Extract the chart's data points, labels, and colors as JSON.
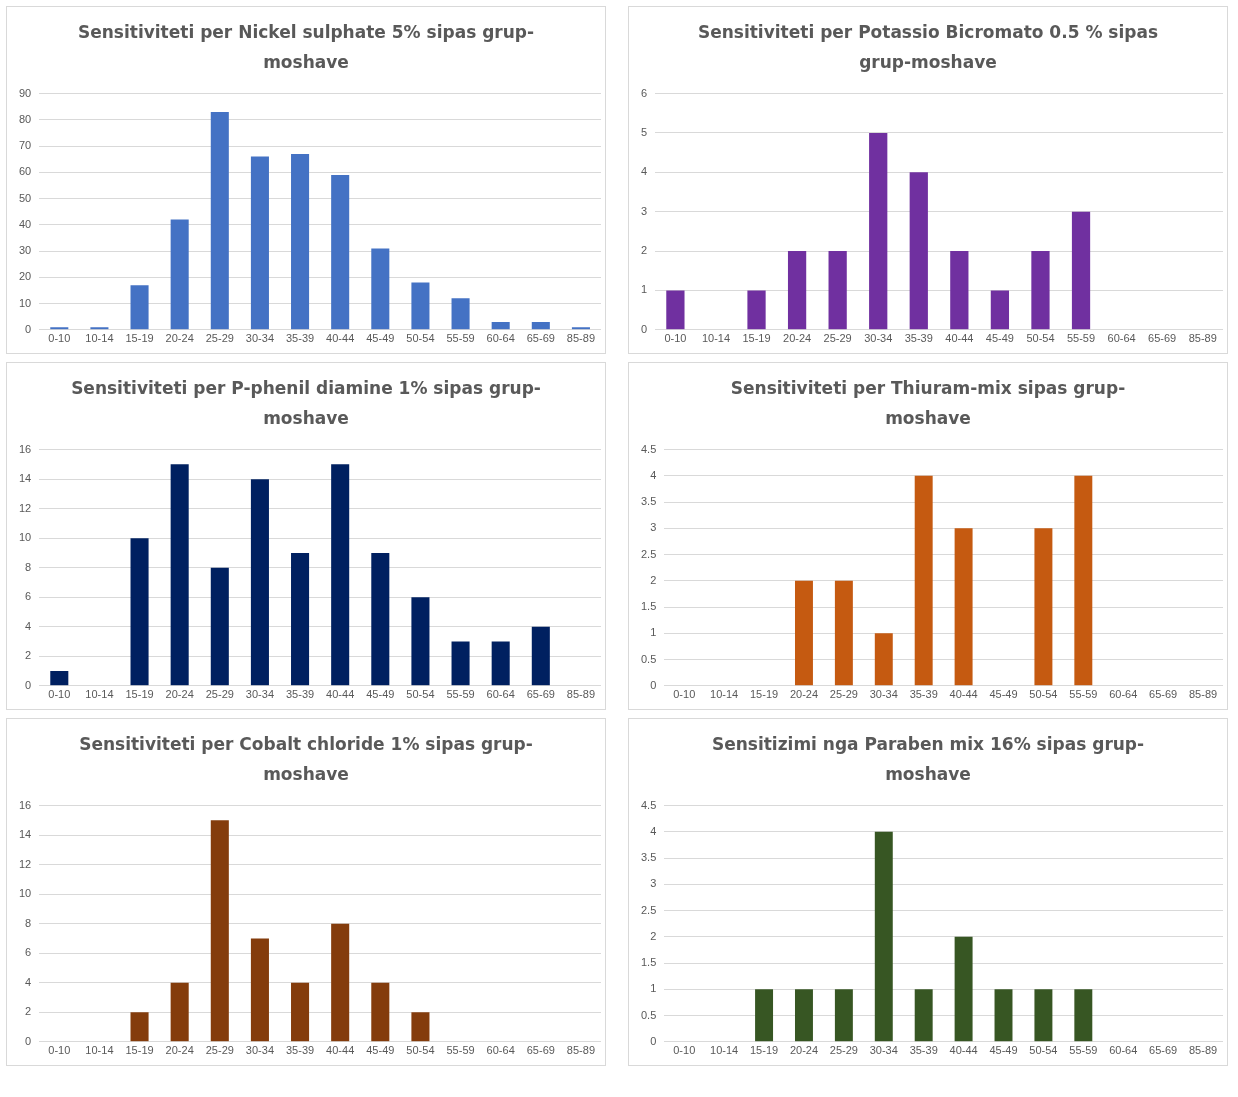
{
  "chart_data": [
    {
      "type": "bar",
      "title": "Sensitiviteti per Nickel sulphate 5% sipas grup-moshave",
      "categories": [
        "0-10",
        "10-14",
        "15-19",
        "20-24",
        "25-29",
        "30-34",
        "35-39",
        "40-44",
        "45-49",
        "50-54",
        "55-59",
        "60-64",
        "65-69",
        "85-89"
      ],
      "values": [
        1,
        1,
        17,
        42,
        83,
        66,
        67,
        59,
        31,
        18,
        12,
        3,
        3,
        1
      ],
      "color": "#4472c4",
      "ylim": [
        0,
        90
      ],
      "yticks": [
        0,
        10,
        20,
        30,
        40,
        50,
        60,
        70,
        80,
        90
      ],
      "grid": "y"
    },
    {
      "type": "bar",
      "title": "Sensitiviteti per Potassio Bicromato 0.5 % sipas grup-moshave",
      "categories": [
        "0-10",
        "10-14",
        "15-19",
        "20-24",
        "25-29",
        "30-34",
        "35-39",
        "40-44",
        "45-49",
        "50-54",
        "55-59",
        "60-64",
        "65-69",
        "85-89"
      ],
      "values": [
        1,
        0,
        1,
        2,
        2,
        5,
        4,
        2,
        1,
        2,
        3,
        0,
        0,
        0
      ],
      "color": "#7030a0",
      "ylim": [
        0,
        6
      ],
      "yticks": [
        0,
        1,
        2,
        3,
        4,
        5,
        6
      ],
      "grid": "y"
    },
    {
      "type": "bar",
      "title": "Sensitiviteti per P-phenil diamine 1% sipas grup-moshave",
      "categories": [
        "0-10",
        "10-14",
        "15-19",
        "20-24",
        "25-29",
        "30-34",
        "35-39",
        "40-44",
        "45-49",
        "50-54",
        "55-59",
        "60-64",
        "65-69",
        "85-89"
      ],
      "values": [
        1,
        0,
        10,
        15,
        8,
        14,
        9,
        15,
        9,
        6,
        3,
        3,
        4,
        0
      ],
      "color": "#002060",
      "ylim": [
        0,
        16
      ],
      "yticks": [
        0,
        2,
        4,
        6,
        8,
        10,
        12,
        14,
        16
      ],
      "grid": "y"
    },
    {
      "type": "bar",
      "title": "Sensitiviteti per Thiuram-mix sipas grup-moshave",
      "categories": [
        "0-10",
        "10-14",
        "15-19",
        "20-24",
        "25-29",
        "30-34",
        "35-39",
        "40-44",
        "45-49",
        "50-54",
        "55-59",
        "60-64",
        "65-69",
        "85-89"
      ],
      "values": [
        0,
        0,
        0,
        2,
        2,
        1,
        4,
        3,
        0,
        3,
        4,
        0,
        0,
        0
      ],
      "color": "#c55a11",
      "ylim": [
        0,
        4.5
      ],
      "yticks": [
        0,
        0.5,
        1,
        1.5,
        2,
        2.5,
        3,
        3.5,
        4,
        4.5
      ],
      "grid": "y"
    },
    {
      "type": "bar",
      "title": "Sensitiviteti per Cobalt chloride 1% sipas grup-moshave",
      "categories": [
        "0-10",
        "10-14",
        "15-19",
        "20-24",
        "25-29",
        "30-34",
        "35-39",
        "40-44",
        "45-49",
        "50-54",
        "55-59",
        "60-64",
        "65-69",
        "85-89"
      ],
      "values": [
        0,
        0,
        2,
        4,
        15,
        7,
        4,
        8,
        4,
        2,
        0,
        0,
        0,
        0
      ],
      "color": "#843c0c",
      "ylim": [
        0,
        16
      ],
      "yticks": [
        0,
        2,
        4,
        6,
        8,
        10,
        12,
        14,
        16
      ],
      "grid": "y"
    },
    {
      "type": "bar",
      "title": "Sensitizimi nga Paraben mix 16% sipas grup-moshave",
      "categories": [
        "0-10",
        "10-14",
        "15-19",
        "20-24",
        "25-29",
        "30-34",
        "35-39",
        "40-44",
        "45-49",
        "50-54",
        "55-59",
        "60-64",
        "65-69",
        "85-89"
      ],
      "values": [
        0,
        0,
        1,
        1,
        1,
        4,
        1,
        2,
        1,
        1,
        1,
        0,
        0,
        0
      ],
      "color": "#375623",
      "ylim": [
        0,
        4.5
      ],
      "yticks": [
        0,
        0.5,
        1,
        1.5,
        2,
        2.5,
        3,
        3.5,
        4,
        4.5
      ],
      "grid": "y"
    }
  ]
}
